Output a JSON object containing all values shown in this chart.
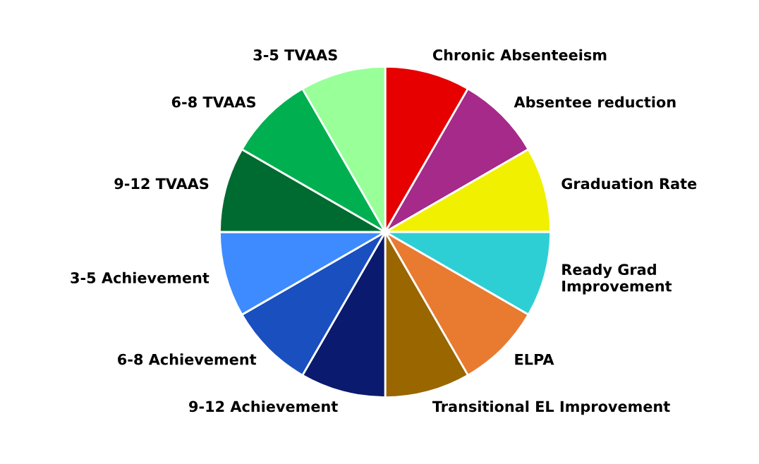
{
  "chart_data": {
    "type": "pie",
    "categories": [
      "Chronic Absenteeism",
      "Absentee reduction",
      "Graduation Rate",
      "Ready Grad\nImprovement",
      "ELPA",
      "Transitional EL Improvement",
      "9-12 Achievement",
      "6-8 Achievement",
      "3-5 Achievement",
      "9-12 TVAAS",
      "6-8 TVAAS",
      "3-5 TVAAS"
    ],
    "values": [
      8.333,
      8.333,
      8.333,
      8.333,
      8.333,
      8.333,
      8.333,
      8.333,
      8.333,
      8.333,
      8.333,
      8.333
    ],
    "colors": [
      "#e60000",
      "#a52a8a",
      "#f0f000",
      "#2ecfd4",
      "#e87b30",
      "#996600",
      "#0a1a6e",
      "#1a4fc0",
      "#3d8bff",
      "#006b30",
      "#00b050",
      "#99ff99"
    ],
    "legend": false
  }
}
